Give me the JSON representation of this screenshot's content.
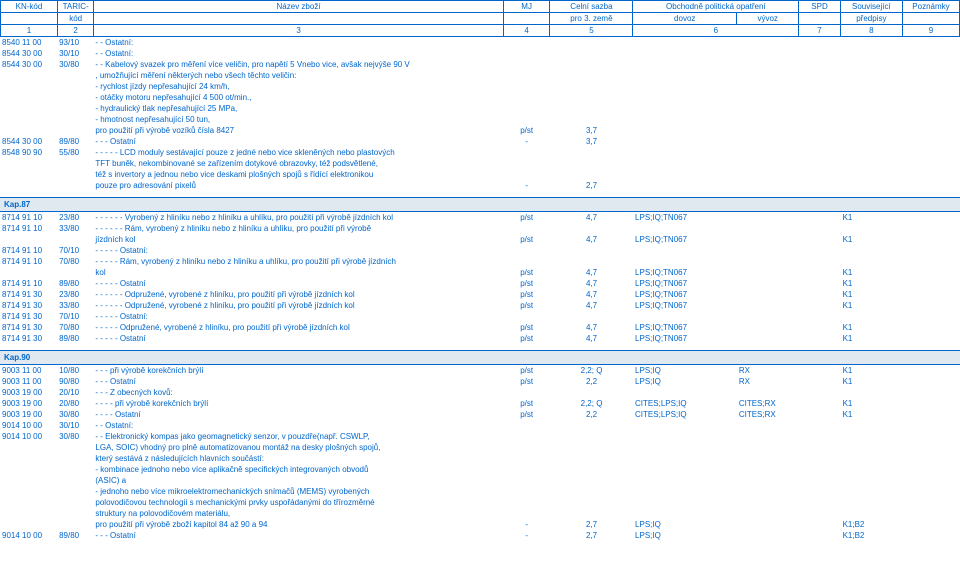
{
  "header": {
    "row1": [
      "KN-kód",
      "TARIC-",
      "Název zboží",
      "MJ",
      "Celní sazba",
      "Obchodně politická opatření",
      "SPD",
      "Související",
      "Poznámky"
    ],
    "row2": [
      "",
      "kód",
      "",
      "",
      "pro 3. země",
      "dovoz",
      "vývoz",
      "",
      "předpisy",
      ""
    ],
    "row3": [
      "1",
      "2",
      "3",
      "4",
      "5",
      "6",
      "7",
      "8",
      "9"
    ]
  },
  "main_rows": [
    {
      "kn": "8540 11 00",
      "taric": "93/10",
      "nazev": "- - Ostatní:"
    },
    {
      "kn": "8544 30 00",
      "taric": "30/10",
      "nazev": "- - Ostatní:"
    },
    {
      "kn": "8544 30 00",
      "taric": "30/80",
      "nazev": "- - Kabelový svazek pro měření více veličin, pro napětí 5 Vnebo vice, avšak nejvýše 90 V"
    },
    {
      "kn": "",
      "taric": "",
      "nazev": ", umožňující měření některých nebo všech těchto veličin:"
    },
    {
      "kn": "",
      "taric": "",
      "nazev": "- rychlost jízdy nepřesahující 24 km/h,"
    },
    {
      "kn": "",
      "taric": "",
      "nazev": "- otáčky motoru nepřesahující 4 500 ot/min.,"
    },
    {
      "kn": "",
      "taric": "",
      "nazev": "- hydraulický tlak nepřesahující 25 MPa,"
    },
    {
      "kn": "",
      "taric": "",
      "nazev": "- hmotnost nepřesahující 50 tun,"
    },
    {
      "kn": "",
      "taric": "",
      "nazev": "pro použití při výrobě vozíků čísla 8427",
      "mj": "p/st",
      "sazba": "3,7"
    },
    {
      "kn": "8544 30 00",
      "taric": "89/80",
      "nazev": "- - - Ostatní",
      "mj": "-",
      "sazba": "3,7"
    },
    {
      "kn": "8548 90 90",
      "taric": "55/80",
      "nazev": "- - - - - LCD moduly sestávající pouze z jedné nebo vice skleněných nebo plastových"
    },
    {
      "kn": "",
      "taric": "",
      "nazev": "TFT buněk, nekombinované se zařízením dotykové obrazovky, též podsvětlené,"
    },
    {
      "kn": "",
      "taric": "",
      "nazev": "též s invertory a jednou nebo vice deskami plošných spojů s řídící elektronikou"
    },
    {
      "kn": "",
      "taric": "",
      "nazev": "pouze pro adresování pixelů",
      "mj": "-",
      "sazba": "2,7"
    }
  ],
  "kap87": {
    "title": "Kap.87",
    "rows": [
      {
        "kn": "8714 91 10",
        "taric": "23/80",
        "nazev": "- - - - - - Vyrobený z hliníku nebo z hliníku a uhlíku, pro použití při výrobě jízdních kol",
        "mj": "p/st",
        "sazba": "4,7",
        "dovoz": "LPS;IQ;TN067",
        "souvis": "K1"
      },
      {
        "kn": "8714 91 10",
        "taric": "33/80",
        "nazev": "- - - - - - Rám, vyrobený z hliníku nebo z hliníku a uhlíku, pro použití při výrobě"
      },
      {
        "kn": "",
        "taric": "",
        "nazev": "jízdních kol",
        "mj": "p/st",
        "sazba": "4,7",
        "dovoz": "LPS;IQ;TN067",
        "souvis": "K1"
      },
      {
        "kn": "8714 91 10",
        "taric": "70/10",
        "nazev": "- - - - - Ostatní:"
      },
      {
        "kn": "8714 91 10",
        "taric": "70/80",
        "nazev": "- - - - - Rám, vyrobený z hliníku nebo z hliníku a uhlíku, pro použití při výrobě jízdních"
      },
      {
        "kn": "",
        "taric": "",
        "nazev": "kol",
        "mj": "p/st",
        "sazba": "4,7",
        "dovoz": "LPS;IQ;TN067",
        "souvis": "K1"
      },
      {
        "kn": "8714 91 10",
        "taric": "89/80",
        "nazev": "- - - - - Ostatní",
        "mj": "p/st",
        "sazba": "4,7",
        "dovoz": "LPS;IQ;TN067",
        "souvis": "K1"
      },
      {
        "kn": "8714 91 30",
        "taric": "23/80",
        "nazev": "- - - - - - Odpružené, vyrobené z hliníku, pro použití při výrobě jízdních kol",
        "mj": "p/st",
        "sazba": "4,7",
        "dovoz": "LPS;IQ;TN067",
        "souvis": "K1"
      },
      {
        "kn": "8714 91 30",
        "taric": "33/80",
        "nazev": "- - - - - - Odpružené, vyrobené z hliníku, pro použití při výrobě jízdních kol",
        "mj": "p/st",
        "sazba": "4,7",
        "dovoz": "LPS;IQ;TN067",
        "souvis": "K1"
      },
      {
        "kn": "8714 91 30",
        "taric": "70/10",
        "nazev": "- - - - - Ostatní:"
      },
      {
        "kn": "8714 91 30",
        "taric": "70/80",
        "nazev": "- - - - - Odpružené, vyrobené z hliníku, pro použití při výrobě jízdních kol",
        "mj": "p/st",
        "sazba": "4,7",
        "dovoz": "LPS;IQ;TN067",
        "souvis": "K1"
      },
      {
        "kn": "8714 91 30",
        "taric": "89/80",
        "nazev": "- - - - - Ostatní",
        "mj": "p/st",
        "sazba": "4,7",
        "dovoz": "LPS;IQ;TN067",
        "souvis": "K1"
      }
    ]
  },
  "kap90": {
    "title": "Kap.90",
    "rows": [
      {
        "kn": "9003 11 00",
        "taric": "10/80",
        "nazev": "- - - při výrobě korekčních brýlí",
        "mj": "p/st",
        "sazba": "2,2; Q",
        "dovoz": "LPS;IQ",
        "vyvoz": "RX",
        "souvis": "K1"
      },
      {
        "kn": "9003 11 00",
        "taric": "90/80",
        "nazev": "- - - Ostatní",
        "mj": "p/st",
        "sazba": "2,2",
        "dovoz": "LPS;IQ",
        "vyvoz": "RX",
        "souvis": "K1"
      },
      {
        "kn": "9003 19 00",
        "taric": "20/10",
        "nazev": "- - - Z obecných kovů:"
      },
      {
        "kn": "9003 19 00",
        "taric": "20/80",
        "nazev": "- - - - při výrobě korekčních brýlí",
        "mj": "p/st",
        "sazba": "2,2; Q",
        "dovoz": "CITES;LPS;IQ",
        "vyvoz": "CITES;RX",
        "souvis": "K1"
      },
      {
        "kn": "9003 19 00",
        "taric": "30/80",
        "nazev": "- - - - Ostatní",
        "mj": "p/st",
        "sazba": "2,2",
        "dovoz": "CITES;LPS;IQ",
        "vyvoz": "CITES;RX",
        "souvis": "K1"
      },
      {
        "kn": "9014 10 00",
        "taric": "30/10",
        "nazev": "- - Ostatní:"
      },
      {
        "kn": "9014 10 00",
        "taric": "30/80",
        "nazev": "- - Elektronický kompas jako geomagnetický senzor, v pouzdře(např. CSWLP,"
      },
      {
        "kn": "",
        "taric": "",
        "nazev": "LGA, SOIC) vhodný pro plně automatizovanou montáž na desky plošných spojů,"
      },
      {
        "kn": "",
        "taric": "",
        "nazev": "který sestává z následujících hlavních součástí:"
      },
      {
        "kn": "",
        "taric": "",
        "nazev": "- kombinace jednoho nebo více aplikačně specifických integrovaných obvodů"
      },
      {
        "kn": "",
        "taric": "",
        "nazev": "(ASIC) a"
      },
      {
        "kn": "",
        "taric": "",
        "nazev": "- jednoho nebo více mikroelektromechanických snímačů (MEMS) vyrobených"
      },
      {
        "kn": "",
        "taric": "",
        "nazev": "polovodičovou technologií s mechanickými prvky uspořádanými do třírozměrné"
      },
      {
        "kn": "",
        "taric": "",
        "nazev": "struktury na polovodičovém materiálu,"
      },
      {
        "kn": "",
        "taric": "",
        "nazev": "pro použití při výrobě zboží kapitol 84 až 90 a 94",
        "mj": "-",
        "sazba": "2,7",
        "dovoz": "LPS;IQ",
        "souvis": "K1;B2"
      },
      {
        "kn": "9014 10 00",
        "taric": "89/80",
        "nazev": "- - - Ostatní",
        "mj": "-",
        "sazba": "2,7",
        "dovoz": "LPS;IQ",
        "souvis": "K1;B2"
      }
    ]
  }
}
